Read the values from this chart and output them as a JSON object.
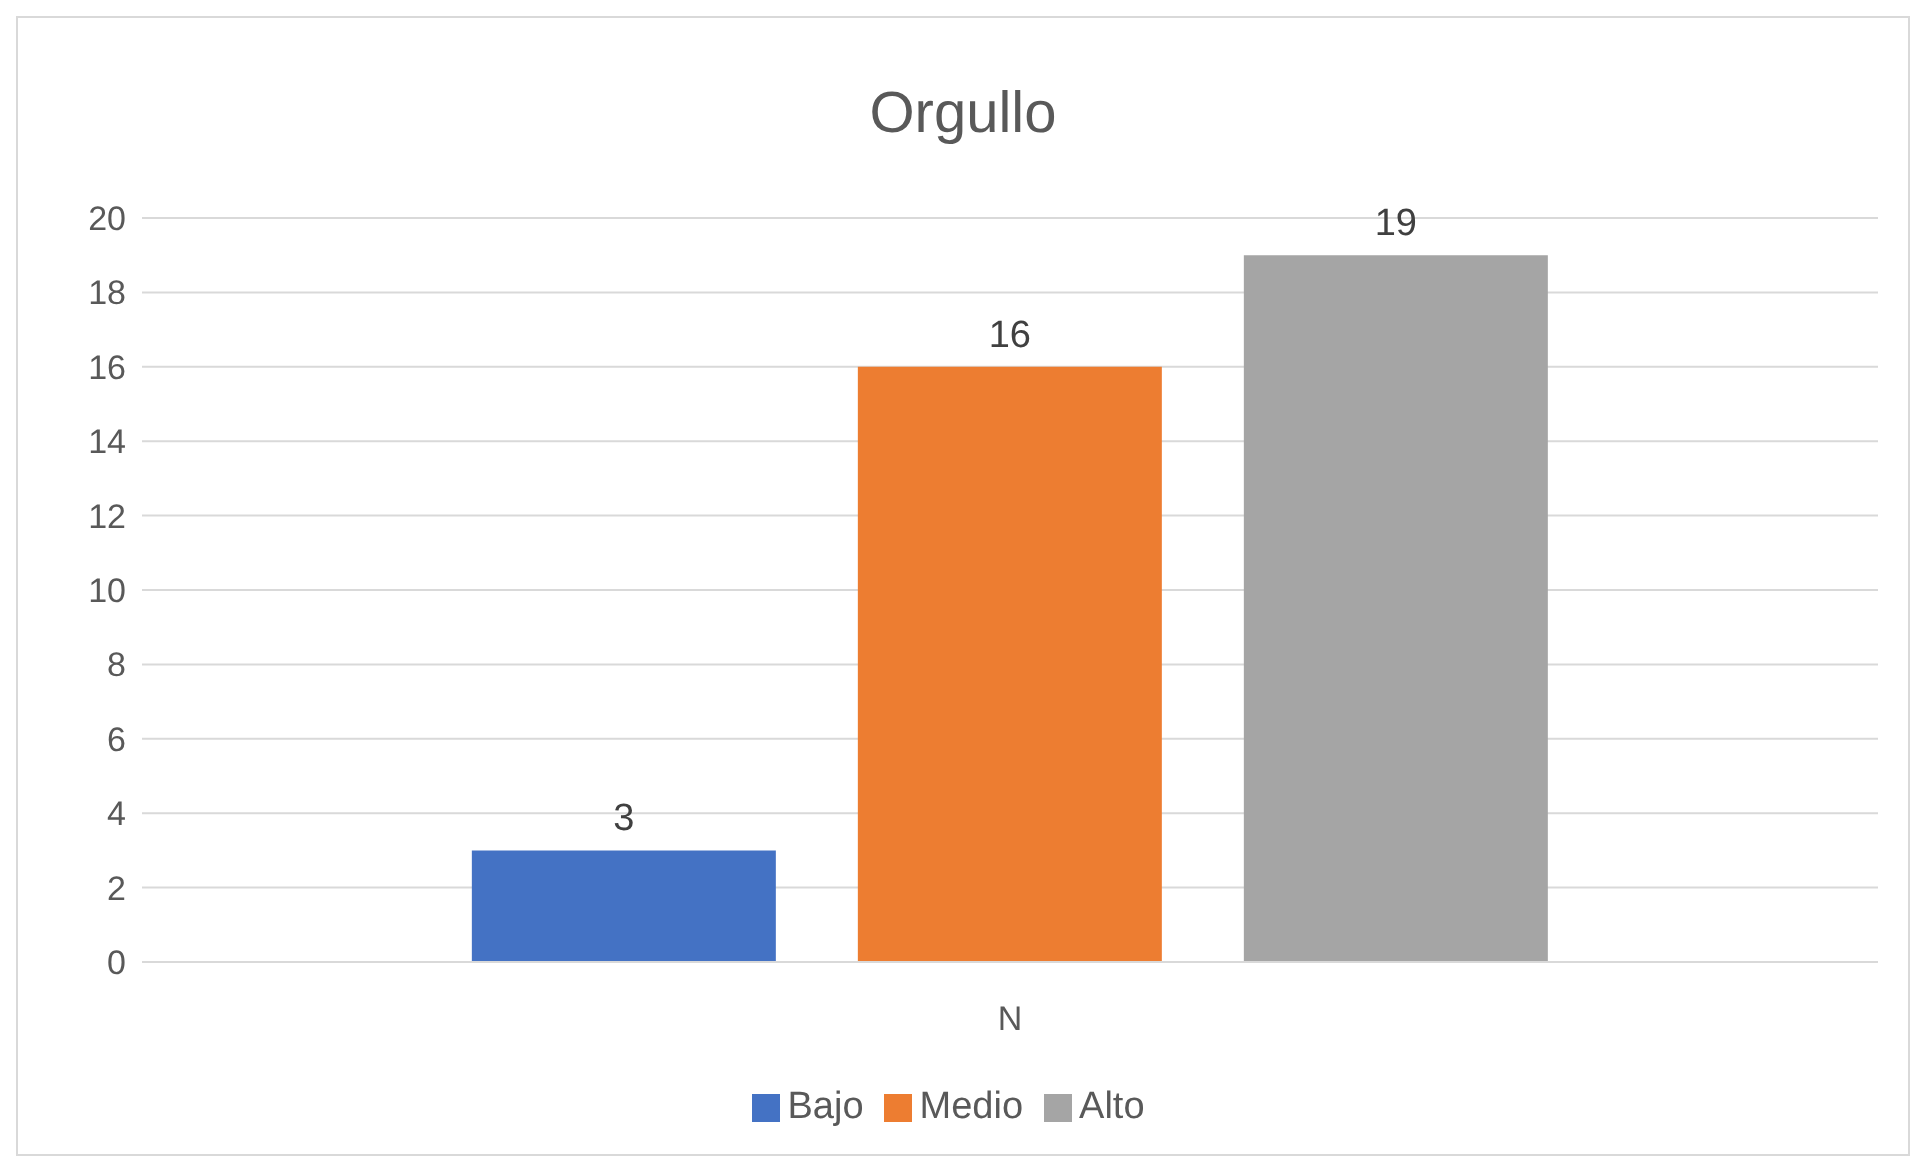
{
  "chart_data": {
    "type": "bar",
    "title": "Orgullo",
    "categories": [
      "N"
    ],
    "series": [
      {
        "name": "Bajo",
        "color": "#4472c4",
        "values": [
          3
        ]
      },
      {
        "name": "Medio",
        "color": "#ed7d31",
        "values": [
          16
        ]
      },
      {
        "name": "Alto",
        "color": "#a5a5a5",
        "values": [
          19
        ]
      }
    ],
    "ylim": [
      0,
      20
    ],
    "yticks": [
      0,
      2,
      4,
      6,
      8,
      10,
      12,
      14,
      16,
      18,
      20
    ],
    "grid": "y",
    "legend": "bottom",
    "data_labels": true
  }
}
